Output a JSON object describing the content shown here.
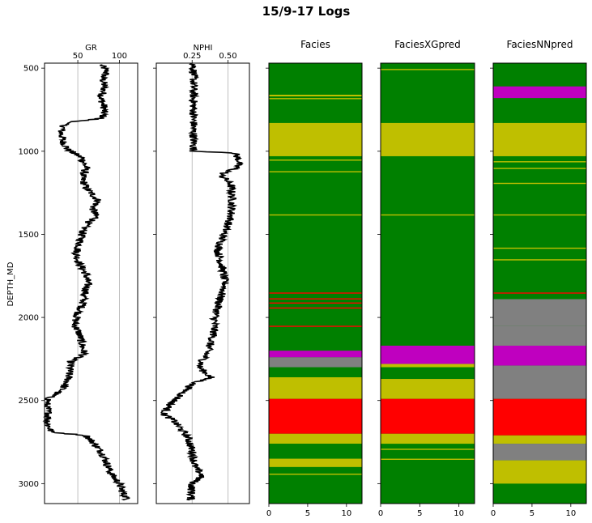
{
  "figure": {
    "title": "15/9-17 Logs",
    "ylabel": "DEPTH_MD"
  },
  "chart_data": [
    {
      "type": "line",
      "name": "GR",
      "title": "GR",
      "ylabel": "DEPTH_MD",
      "ylim": [
        3120,
        470
      ],
      "xlim": [
        10,
        122
      ],
      "xticks": [
        50,
        100
      ],
      "grid": true,
      "xaxis_position": "top",
      "yticks": [
        500,
        1000,
        1500,
        2000,
        2500,
        3000
      ],
      "profile": [
        [
          480,
          78
        ],
        [
          520,
          85
        ],
        [
          560,
          80
        ],
        [
          620,
          82
        ],
        [
          680,
          78
        ],
        [
          740,
          82
        ],
        [
          800,
          80
        ],
        [
          830,
          35
        ],
        [
          880,
          30
        ],
        [
          940,
          32
        ],
        [
          990,
          38
        ],
        [
          1040,
          55
        ],
        [
          1100,
          60
        ],
        [
          1160,
          55
        ],
        [
          1220,
          60
        ],
        [
          1300,
          75
        ],
        [
          1340,
          68
        ],
        [
          1400,
          72
        ],
        [
          1440,
          60
        ],
        [
          1500,
          55
        ],
        [
          1560,
          52
        ],
        [
          1620,
          48
        ],
        [
          1680,
          52
        ],
        [
          1740,
          60
        ],
        [
          1800,
          62
        ],
        [
          1860,
          58
        ],
        [
          1920,
          56
        ],
        [
          1980,
          50
        ],
        [
          2040,
          46
        ],
        [
          2100,
          52
        ],
        [
          2160,
          55
        ],
        [
          2220,
          58
        ],
        [
          2260,
          42
        ],
        [
          2320,
          40
        ],
        [
          2380,
          38
        ],
        [
          2440,
          30
        ],
        [
          2480,
          16
        ],
        [
          2530,
          12
        ],
        [
          2580,
          15
        ],
        [
          2640,
          14
        ],
        [
          2690,
          18
        ],
        [
          2710,
          60
        ],
        [
          2760,
          70
        ],
        [
          2820,
          80
        ],
        [
          2880,
          85
        ],
        [
          2940,
          90
        ],
        [
          3000,
          100
        ],
        [
          3060,
          105
        ],
        [
          3100,
          110
        ]
      ]
    },
    {
      "type": "line",
      "name": "NPHI",
      "title": "NPHI",
      "xlim": [
        0,
        0.65
      ],
      "xticks": [
        0.25,
        0.5
      ],
      "xticklabels": [
        "0.25",
        "0.50"
      ],
      "grid": true,
      "xaxis_position": "top",
      "profile": [
        [
          470,
          0.26
        ],
        [
          1000,
          0.26
        ],
        [
          1010,
          0.55
        ],
        [
          1060,
          0.58
        ],
        [
          1100,
          0.56
        ],
        [
          1140,
          0.45
        ],
        [
          1200,
          0.52
        ],
        [
          1300,
          0.53
        ],
        [
          1400,
          0.52
        ],
        [
          1500,
          0.47
        ],
        [
          1600,
          0.43
        ],
        [
          1700,
          0.46
        ],
        [
          1800,
          0.48
        ],
        [
          1900,
          0.44
        ],
        [
          2000,
          0.41
        ],
        [
          2100,
          0.4
        ],
        [
          2200,
          0.36
        ],
        [
          2300,
          0.3
        ],
        [
          2360,
          0.38
        ],
        [
          2400,
          0.25
        ],
        [
          2460,
          0.18
        ],
        [
          2520,
          0.1
        ],
        [
          2580,
          0.05
        ],
        [
          2620,
          0.12
        ],
        [
          2680,
          0.18
        ],
        [
          2720,
          0.22
        ],
        [
          2800,
          0.25
        ],
        [
          2900,
          0.27
        ],
        [
          2950,
          0.32
        ],
        [
          3000,
          0.25
        ],
        [
          3100,
          0.24
        ]
      ]
    },
    {
      "type": "heatmap",
      "name": "Facies",
      "title": "Facies",
      "xlim": [
        0,
        12
      ],
      "xticks": [
        0,
        5,
        10
      ],
      "colors": {
        "green": "#008000",
        "yellow": "#bfbf00",
        "magenta": "#bf00bf",
        "red": "#ff0000",
        "grey": "#808080"
      },
      "background": "green",
      "bands": [
        [
          660,
          670,
          "yellow"
        ],
        [
          680,
          686,
          "yellow"
        ],
        [
          830,
          1030,
          "yellow"
        ],
        [
          1050,
          1055,
          "yellow"
        ],
        [
          1120,
          1126,
          "yellow"
        ],
        [
          1380,
          1386,
          "yellow"
        ],
        [
          1850,
          1856,
          "red"
        ],
        [
          1885,
          1891,
          "red"
        ],
        [
          1910,
          1916,
          "red"
        ],
        [
          1940,
          1946,
          "red"
        ],
        [
          2050,
          2056,
          "red"
        ],
        [
          2200,
          2240,
          "magenta"
        ],
        [
          2240,
          2300,
          "grey"
        ],
        [
          2300,
          2360,
          "green"
        ],
        [
          2360,
          2490,
          "yellow"
        ],
        [
          2490,
          2700,
          "red"
        ],
        [
          2700,
          2760,
          "yellow"
        ],
        [
          2760,
          2850,
          "green"
        ],
        [
          2850,
          2900,
          "yellow"
        ],
        [
          2940,
          2946,
          "yellow"
        ]
      ]
    },
    {
      "type": "heatmap",
      "name": "FaciesXGpred",
      "title": "FaciesXGpred",
      "xlim": [
        0,
        12
      ],
      "xticks": [
        0,
        5,
        10
      ],
      "background": "green",
      "bands": [
        [
          505,
          511,
          "yellow"
        ],
        [
          830,
          1030,
          "yellow"
        ],
        [
          1380,
          1386,
          "yellow"
        ],
        [
          2170,
          2280,
          "magenta"
        ],
        [
          2280,
          2300,
          "yellow"
        ],
        [
          2300,
          2370,
          "green"
        ],
        [
          2370,
          2490,
          "yellow"
        ],
        [
          2490,
          2700,
          "red"
        ],
        [
          2700,
          2760,
          "yellow"
        ],
        [
          2790,
          2796,
          "yellow"
        ],
        [
          2850,
          2856,
          "yellow"
        ]
      ]
    },
    {
      "type": "heatmap",
      "name": "FaciesNNpred",
      "title": "FaciesNNpred",
      "xlim": [
        0,
        12
      ],
      "xticks": [
        0,
        5,
        10
      ],
      "background": "green",
      "bands": [
        [
          610,
          680,
          "magenta"
        ],
        [
          830,
          1030,
          "yellow"
        ],
        [
          1060,
          1066,
          "yellow"
        ],
        [
          1100,
          1106,
          "yellow"
        ],
        [
          1190,
          1196,
          "yellow"
        ],
        [
          1380,
          1386,
          "yellow"
        ],
        [
          1580,
          1586,
          "yellow"
        ],
        [
          1650,
          1656,
          "yellow"
        ],
        [
          1850,
          1856,
          "red"
        ],
        [
          1890,
          2050,
          "grey"
        ],
        [
          2050,
          2170,
          "grey"
        ],
        [
          2170,
          2290,
          "magenta"
        ],
        [
          2290,
          2490,
          "grey"
        ],
        [
          2490,
          2710,
          "red"
        ],
        [
          2710,
          2760,
          "yellow"
        ],
        [
          2760,
          2860,
          "grey"
        ],
        [
          2860,
          3000,
          "yellow"
        ]
      ]
    }
  ]
}
